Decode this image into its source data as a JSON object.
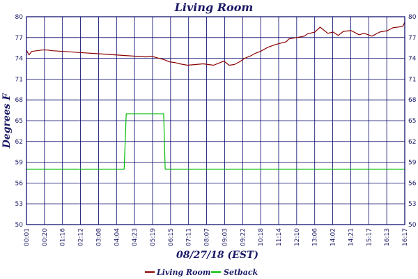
{
  "chart_data": {
    "type": "line",
    "title": "Living Room",
    "xlabel": "08/27/18 (EST)",
    "ylabel": "Degrees F",
    "ylim": [
      50,
      80
    ],
    "yticks": [
      "50",
      "53",
      "56",
      "59",
      "62",
      "65",
      "68",
      "71",
      "74",
      "77",
      "80"
    ],
    "xlim": [
      0,
      1456
    ],
    "xticks": [
      "00:01",
      "00:20",
      "01:16",
      "02:12",
      "03:08",
      "04:04",
      "04:23",
      "05:19",
      "06:15",
      "07:11",
      "08:07",
      "09:03",
      "09:22",
      "10:18",
      "11:14",
      "12:10",
      "13:06",
      "14:02",
      "14:21",
      "15:17",
      "16:13",
      "16:17"
    ],
    "grid": true,
    "legend_position": "bottom",
    "colors": {
      "axis": "#000066",
      "grid": "#000066",
      "living_room": "#8b0000",
      "setback": "#00bb00"
    },
    "series": [
      {
        "name": "Living Room",
        "color": "#8b0000",
        "x": [
          0,
          5,
          10,
          20,
          40,
          60,
          80,
          100,
          140,
          180,
          220,
          260,
          300,
          340,
          380,
          420,
          460,
          480,
          510,
          530,
          550,
          570,
          590,
          620,
          650,
          680,
          700,
          720,
          740,
          760,
          780,
          800,
          820,
          840,
          860,
          880,
          900,
          930,
          960,
          1000,
          1010,
          1040,
          1070,
          1080,
          1090,
          1110,
          1130,
          1160,
          1180,
          1200,
          1220,
          1250,
          1280,
          1300,
          1330,
          1360,
          1390,
          1410,
          1430,
          1445,
          1450,
          1456
        ],
        "y": [
          75.2,
          74.8,
          74.5,
          75.0,
          75.1,
          75.2,
          75.2,
          75.1,
          75.0,
          74.9,
          74.8,
          74.7,
          74.6,
          74.5,
          74.4,
          74.3,
          74.2,
          74.3,
          74.0,
          73.8,
          73.5,
          73.4,
          73.2,
          73.0,
          73.1,
          73.2,
          73.1,
          73.0,
          73.3,
          73.6,
          73.0,
          73.1,
          73.5,
          74.0,
          74.3,
          74.7,
          75.0,
          75.6,
          76.0,
          76.4,
          76.8,
          77.0,
          77.2,
          77.5,
          77.6,
          77.8,
          78.5,
          77.6,
          77.8,
          77.3,
          77.9,
          78.0,
          77.4,
          77.6,
          77.2,
          77.8,
          78.0,
          78.4,
          78.5,
          78.6,
          78.7,
          79.2
        ]
      },
      {
        "name": "Setback",
        "color": "#00bb00",
        "x": [
          0,
          376,
          384,
          528,
          534,
          1456
        ],
        "y": [
          58,
          58,
          66,
          66,
          58,
          58
        ]
      }
    ]
  }
}
